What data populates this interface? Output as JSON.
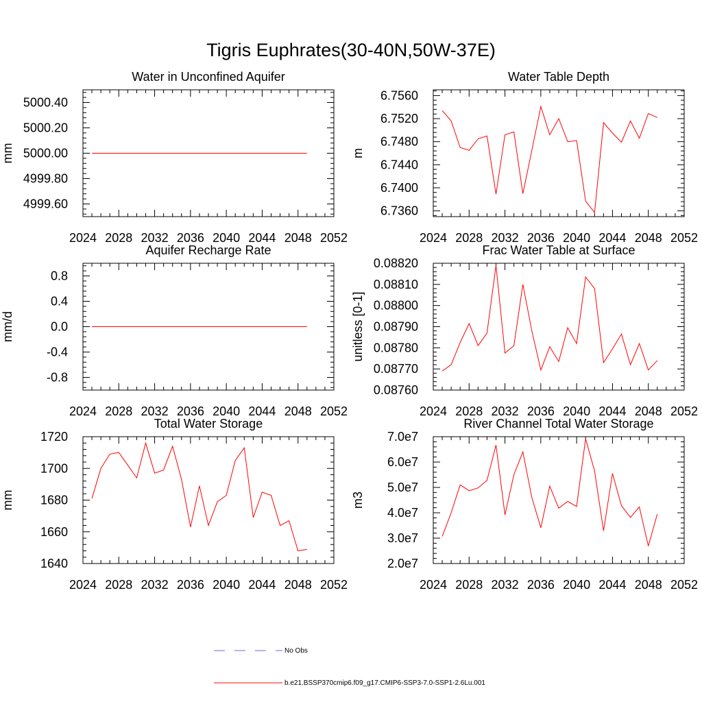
{
  "figure": {
    "title": "Tigris Euphrates(30-40N,50W-37E)"
  },
  "legend": {
    "entries": [
      {
        "label": "No Obs",
        "color": "#6a6ad8",
        "style": "dashed"
      },
      {
        "label": "b.e21.BSSP370cmip6.f09_g17.CMIP6-SSP3-7.0-SSP1-2.6Lu.001",
        "color": "#ff0000",
        "style": "solid"
      }
    ]
  },
  "chart_data": [
    {
      "type": "line",
      "title": "Water in Unconfined Aquifer",
      "xlabel": "",
      "ylabel": "mm",
      "xlim": [
        2024,
        2052
      ],
      "ylim": [
        4999.5,
        5000.5
      ],
      "xticks": [
        "2024",
        "2028",
        "2032",
        "2036",
        "2040",
        "2044",
        "2048",
        "2052"
      ],
      "yticks": [
        4999.6,
        4999.8,
        5000.0,
        5000.2,
        5000.4
      ],
      "yticklabels": [
        "4999.60",
        "4999.80",
        "5000.00",
        "5000.20",
        "5000.40"
      ],
      "x": [
        2025,
        2026,
        2027,
        2028,
        2029,
        2030,
        2031,
        2032,
        2033,
        2034,
        2035,
        2036,
        2037,
        2038,
        2039,
        2040,
        2041,
        2042,
        2043,
        2044,
        2045,
        2046,
        2047,
        2048,
        2049
      ],
      "series": [
        {
          "name": "b.e21.BSSP370cmip6.f09_g17.CMIP6-SSP3-7.0-SSP1-2.6Lu.001",
          "color": "#ff0000",
          "values": [
            5000,
            5000,
            5000,
            5000,
            5000,
            5000,
            5000,
            5000,
            5000,
            5000,
            5000,
            5000,
            5000,
            5000,
            5000,
            5000,
            5000,
            5000,
            5000,
            5000,
            5000,
            5000,
            5000,
            5000,
            5000
          ]
        }
      ]
    },
    {
      "type": "line",
      "title": "Water Table Depth",
      "xlabel": "",
      "ylabel": "m",
      "xlim": [
        2024,
        2052
      ],
      "ylim": [
        6.735,
        6.757
      ],
      "xticks": [
        "2024",
        "2028",
        "2032",
        "2036",
        "2040",
        "2044",
        "2048",
        "2052"
      ],
      "yticks": [
        6.736,
        6.74,
        6.744,
        6.748,
        6.752,
        6.756
      ],
      "yticklabels": [
        "6.7360",
        "6.7400",
        "6.7440",
        "6.7480",
        "6.7520",
        "6.7560"
      ],
      "x": [
        2025,
        2026,
        2027,
        2028,
        2029,
        2030,
        2031,
        2032,
        2033,
        2034,
        2035,
        2036,
        2037,
        2038,
        2039,
        2040,
        2041,
        2042,
        2043,
        2044,
        2045,
        2046,
        2047,
        2048,
        2049
      ],
      "series": [
        {
          "name": "b.e21.BSSP370cmip6.f09_g17.CMIP6-SSP3-7.0-SSP1-2.6Lu.001",
          "color": "#ff0000",
          "values": [
            6.7534,
            6.7516,
            6.747,
            6.7465,
            6.7485,
            6.749,
            6.7389,
            6.7492,
            6.7497,
            6.739,
            6.7465,
            6.7541,
            6.7492,
            6.752,
            6.748,
            6.7482,
            6.7377,
            6.7357,
            6.7513,
            6.7495,
            6.7479,
            6.7516,
            6.7486,
            6.7529,
            6.7522
          ]
        }
      ]
    },
    {
      "type": "line",
      "title": "Aquifer Recharge Rate",
      "xlabel": "",
      "ylabel": "mm/d",
      "xlim": [
        2024,
        2052
      ],
      "ylim": [
        -1.0,
        1.0
      ],
      "xticks": [
        "2024",
        "2028",
        "2032",
        "2036",
        "2040",
        "2044",
        "2048",
        "2052"
      ],
      "yticks": [
        -0.8,
        -0.4,
        0.0,
        0.4,
        0.8
      ],
      "yticklabels": [
        "-0.8",
        "-0.4",
        "0.0",
        "0.4",
        "0.8"
      ],
      "x": [
        2025,
        2026,
        2027,
        2028,
        2029,
        2030,
        2031,
        2032,
        2033,
        2034,
        2035,
        2036,
        2037,
        2038,
        2039,
        2040,
        2041,
        2042,
        2043,
        2044,
        2045,
        2046,
        2047,
        2048,
        2049
      ],
      "series": [
        {
          "name": "b.e21.BSSP370cmip6.f09_g17.CMIP6-SSP3-7.0-SSP1-2.6Lu.001",
          "color": "#ff0000",
          "values": [
            0,
            0,
            0,
            0,
            0,
            0,
            0,
            0,
            0,
            0,
            0,
            0,
            0,
            0,
            0,
            0,
            0,
            0,
            0,
            0,
            0,
            0,
            0,
            0,
            0
          ]
        }
      ]
    },
    {
      "type": "line",
      "title": "Frac Water Table at Surface",
      "xlabel": "",
      "ylabel": "unitless [0-1]",
      "xlim": [
        2024,
        2052
      ],
      "ylim": [
        0.0876,
        0.0882
      ],
      "xticks": [
        "2024",
        "2028",
        "2032",
        "2036",
        "2040",
        "2044",
        "2048",
        "2052"
      ],
      "yticks": [
        0.0876,
        0.0877,
        0.0878,
        0.0879,
        0.088,
        0.0881,
        0.0882
      ],
      "yticklabels": [
        "0.08760",
        "0.08770",
        "0.08780",
        "0.08790",
        "0.08800",
        "0.08810",
        "0.08820"
      ],
      "x": [
        2025,
        2026,
        2027,
        2028,
        2029,
        2030,
        2031,
        2032,
        2033,
        2034,
        2035,
        2036,
        2037,
        2038,
        2039,
        2040,
        2041,
        2042,
        2043,
        2044,
        2045,
        2046,
        2047,
        2048,
        2049
      ],
      "series": [
        {
          "name": "b.e21.BSSP370cmip6.f09_g17.CMIP6-SSP3-7.0-SSP1-2.6Lu.001",
          "color": "#ff0000",
          "values": [
            0.08769,
            0.08772,
            0.087825,
            0.087915,
            0.08781,
            0.08787,
            0.08819,
            0.087775,
            0.08781,
            0.0881,
            0.08788,
            0.087695,
            0.087805,
            0.087735,
            0.087895,
            0.08782,
            0.088135,
            0.08808,
            0.08773,
            0.087795,
            0.087865,
            0.08772,
            0.08782,
            0.087695,
            0.08774
          ]
        }
      ]
    },
    {
      "type": "line",
      "title": "Total Water Storage",
      "xlabel": "",
      "ylabel": "mm",
      "xlim": [
        2024,
        2052
      ],
      "ylim": [
        1640,
        1720
      ],
      "xticks": [
        "2024",
        "2028",
        "2032",
        "2036",
        "2040",
        "2044",
        "2048",
        "2052"
      ],
      "yticks": [
        1640,
        1660,
        1680,
        1700,
        1720
      ],
      "yticklabels": [
        "1640",
        "1660",
        "1680",
        "1700",
        "1720"
      ],
      "x": [
        2025,
        2026,
        2027,
        2028,
        2029,
        2030,
        2031,
        2032,
        2033,
        2034,
        2035,
        2036,
        2037,
        2038,
        2039,
        2040,
        2041,
        2042,
        2043,
        2044,
        2045,
        2046,
        2047,
        2048,
        2049
      ],
      "series": [
        {
          "name": "b.e21.BSSP370cmip6.f09_g17.CMIP6-SSP3-7.0-SSP1-2.6Lu.001",
          "color": "#ff0000",
          "values": [
            1681,
            1700,
            1709,
            1710,
            1702,
            1694,
            1716,
            1697,
            1699,
            1714,
            1693,
            1663,
            1689,
            1664,
            1679,
            1683,
            1705,
            1713,
            1669,
            1685,
            1683,
            1664,
            1667,
            1648,
            1649
          ]
        }
      ]
    },
    {
      "type": "line",
      "title": "River Channel Total Water Storage",
      "xlabel": "",
      "ylabel": "m3",
      "xlim": [
        2024,
        2052
      ],
      "ylim": [
        20000000,
        70000000
      ],
      "xticks": [
        "2024",
        "2028",
        "2032",
        "2036",
        "2040",
        "2044",
        "2048",
        "2052"
      ],
      "yticks": [
        20000000,
        30000000,
        40000000,
        50000000,
        60000000,
        70000000
      ],
      "yticklabels": [
        "2.0e7",
        "3.0e7",
        "4.0e7",
        "5.0e7",
        "6.0e7",
        "7.0e7"
      ],
      "x": [
        2025,
        2026,
        2027,
        2028,
        2029,
        2030,
        2031,
        2032,
        2033,
        2034,
        2035,
        2036,
        2037,
        2038,
        2039,
        2040,
        2041,
        2042,
        2043,
        2044,
        2045,
        2046,
        2047,
        2048,
        2049
      ],
      "series": [
        {
          "name": "b.e21.BSSP370cmip6.f09_g17.CMIP6-SSP3-7.0-SSP1-2.6Lu.001",
          "color": "#ff0000",
          "values": [
            30700000,
            40000000,
            51000000,
            48700000,
            49800000,
            52800000,
            66700000,
            39200000,
            55000000,
            64000000,
            46000000,
            34100000,
            50500000,
            41800000,
            44500000,
            42500000,
            69200000,
            56500000,
            32900000,
            55500000,
            42800000,
            38200000,
            42300000,
            26900000,
            39500000
          ]
        }
      ]
    }
  ]
}
